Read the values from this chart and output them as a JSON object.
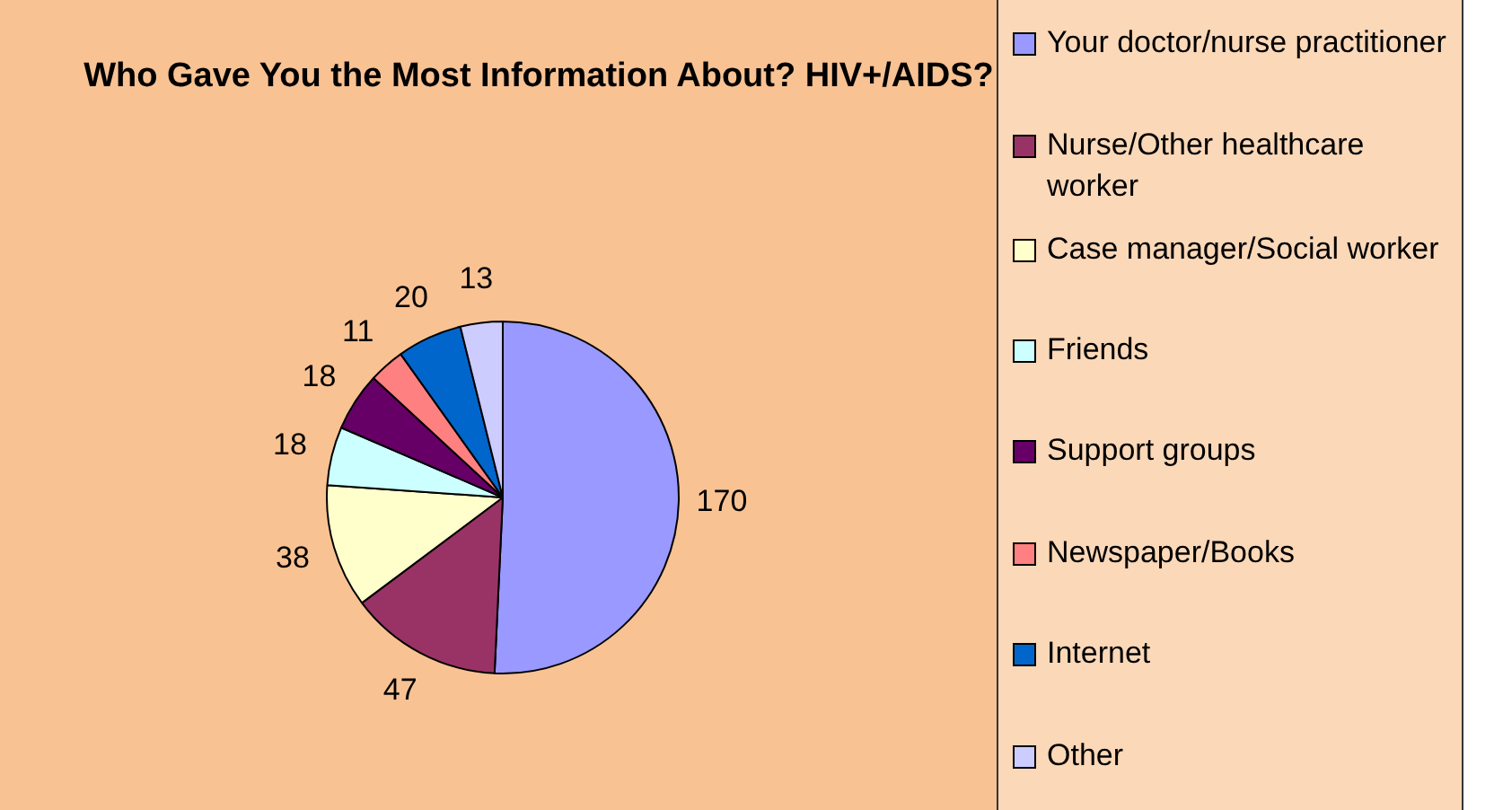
{
  "chart_data": {
    "type": "pie",
    "title": "Who Gave You the Most Information About? HIV+/AIDS?",
    "categories": [
      "Your doctor/nurse practitioner",
      "Nurse/Other healthcare worker",
      "Case manager/Social worker",
      "Friends",
      "Support groups",
      "Newspaper/Books",
      "Internet",
      "Other"
    ],
    "values": [
      170,
      47,
      38,
      18,
      18,
      11,
      20,
      13
    ],
    "colors": [
      "#9999ff",
      "#993366",
      "#ffffcc",
      "#ccffff",
      "#660066",
      "#ff8080",
      "#0066cc",
      "#ccccff"
    ],
    "data_labels": true,
    "legend": "right"
  }
}
